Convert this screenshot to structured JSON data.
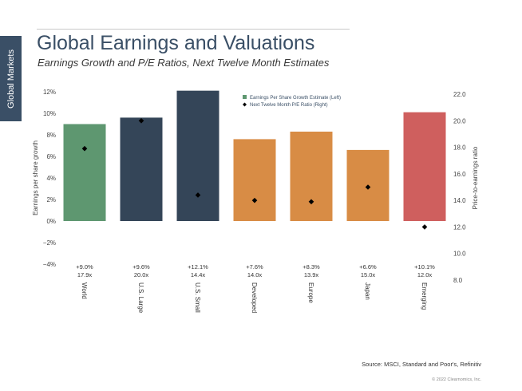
{
  "side_tab": {
    "label": "Global Markets"
  },
  "header": {
    "title": "Global Earnings and Valuations",
    "subtitle": "Earnings Growth and P/E Ratios, Next Twelve Month Estimates"
  },
  "footer": {
    "source": "Source: MSCI, Standard and Poor's, Refinitiv",
    "copyright": "© 2022 Clearnomics, Inc."
  },
  "colors": {
    "world": "#5e9770",
    "us": "#344558",
    "developed": "#d88c45",
    "emerging": "#cf5f5e",
    "marker": "#000000"
  },
  "chart_data": {
    "type": "bar",
    "categories": [
      "World",
      "U.S. Large",
      "U.S. Small",
      "Developed",
      "Europe",
      "Japan",
      "Emerging"
    ],
    "series": [
      {
        "name": "Earnings Per Share Growth Estimate (Left)",
        "axis": "left",
        "values": [
          9.0,
          9.6,
          12.1,
          7.6,
          8.3,
          6.6,
          10.1
        ],
        "colors": [
          "#5e9770",
          "#344558",
          "#344558",
          "#d88c45",
          "#d88c45",
          "#d88c45",
          "#cf5f5e"
        ],
        "labels": [
          "+9.0%",
          "+9.6%",
          "+12.1%",
          "+7.6%",
          "+8.3%",
          "+6.6%",
          "+10.1%"
        ]
      },
      {
        "name": "Next Twelve Month P/E Ratio (Right)",
        "axis": "right",
        "marker": "diamond",
        "values": [
          17.9,
          20.0,
          14.4,
          14.0,
          13.9,
          15.0,
          12.0
        ],
        "labels": [
          "17.9x",
          "20.0x",
          "14.4x",
          "14.0x",
          "13.9x",
          "15.0x",
          "12.0x"
        ]
      }
    ],
    "ylabel": "Earnings per share growth",
    "y2label": "Price-to-earnings ratio",
    "ylim": [
      -4,
      12
    ],
    "yticks": [
      -4,
      -2,
      0,
      2,
      4,
      6,
      8,
      10,
      12
    ],
    "ytick_labels": [
      "−4%",
      "−2%",
      "0%",
      "2%",
      "4%",
      "6%",
      "8%",
      "10%",
      "12%"
    ],
    "y2lim": [
      8,
      22
    ],
    "y2ticks": [
      8,
      10,
      12,
      14,
      16,
      18,
      20,
      22
    ],
    "y2tick_labels": [
      "8.0",
      "10.0",
      "12.0",
      "14.0",
      "16.0",
      "18.0",
      "20.0",
      "22.0"
    ],
    "grid": false,
    "legend": "top-center"
  }
}
